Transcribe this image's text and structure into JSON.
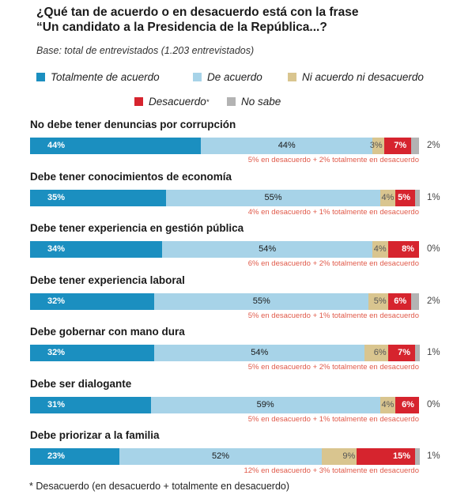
{
  "header": {
    "title_line1": "¿Qué tan de acuerdo o en desacuerdo está con la frase",
    "title_line2": "“Un candidato a la Presidencia de la República...?",
    "base": "Base: total de entrevistados (1.203 entrevistados)"
  },
  "legend": [
    {
      "label": "Totalmente de acuerdo",
      "color": "#1b8fc0"
    },
    {
      "label": "De acuerdo",
      "color": "#a7d3e8"
    },
    {
      "label": "Ni acuerdo ni desacuerdo",
      "color": "#d9c58f"
    },
    {
      "label": "Desacuerdo",
      "marker": "*",
      "color": "#d6242e"
    },
    {
      "label": "No sabe",
      "color": "#b3b3b3"
    }
  ],
  "footnote": "* Desacuerdo (en desacuerdo + totalmente en desacuerdo)",
  "chart_data": {
    "type": "bar",
    "orientation": "horizontal",
    "stacked": true,
    "title": "¿Qué tan de acuerdo o en desacuerdo está con la frase “Un candidato a la Presidencia de la República...?",
    "categories": [
      "No debe tener denuncias por corrupción",
      "Debe tener conocimientos de economía",
      "Debe tener experiencia en gestión pública",
      "Debe tener experiencia laboral",
      "Debe gobernar con mano dura",
      "Debe ser dialogante",
      "Debe priorizar a la familia"
    ],
    "series": [
      {
        "name": "Totalmente de acuerdo",
        "color": "#1b8fc0",
        "values": [
          44,
          35,
          34,
          32,
          32,
          31,
          23
        ]
      },
      {
        "name": "De acuerdo",
        "color": "#a7d3e8",
        "values": [
          44,
          55,
          54,
          55,
          54,
          59,
          52
        ]
      },
      {
        "name": "Ni acuerdo ni desacuerdo",
        "color": "#d9c58f",
        "values": [
          3,
          4,
          4,
          5,
          6,
          4,
          9
        ]
      },
      {
        "name": "Desacuerdo *",
        "color": "#d6242e",
        "values": [
          7,
          5,
          8,
          6,
          7,
          6,
          15
        ]
      },
      {
        "name": "No sabe",
        "color": "#b3b3b3",
        "values": [
          2,
          1,
          0,
          2,
          1,
          0,
          1
        ]
      }
    ],
    "notes": [
      "5% en desacuerdo + 2% totalmente en desacuerdo",
      "4% en desacuerdo + 1% totalmente en desacuerdo",
      "6% en desacuerdo + 2% totalmente en desacuerdo",
      "5% en desacuerdo + 1% totalmente en desacuerdo",
      "5% en desacuerdo + 2% totalmente en desacuerdo",
      "5% en desacuerdo + 1% totalmente en desacuerdo",
      "12% en desacuerdo + 3% totalmente en desacuerdo"
    ],
    "unit": "%"
  }
}
